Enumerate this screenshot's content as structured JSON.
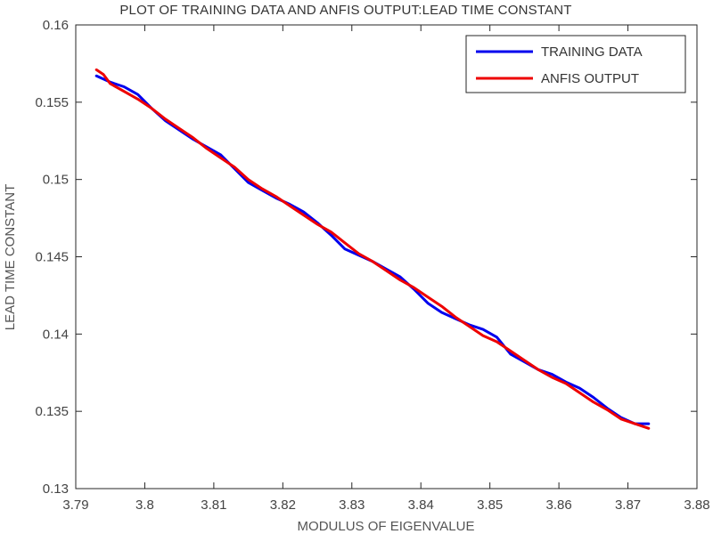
{
  "chart_data": {
    "type": "line",
    "title": "PLOT OF TRAINING DATA AND ANFIS OUTPUT:LEAD TIME CONSTANT",
    "xlabel": "MODULUS OF EIGENVALUE",
    "ylabel": "LEAD TIME CONSTANT",
    "xlim": [
      3.79,
      3.88
    ],
    "ylim": [
      0.13,
      0.16
    ],
    "xticks": [
      3.79,
      3.8,
      3.81,
      3.82,
      3.83,
      3.84,
      3.85,
      3.86,
      3.87,
      3.88
    ],
    "xtick_labels": [
      "3.79",
      "3.8",
      "3.81",
      "3.82",
      "3.83",
      "3.84",
      "3.85",
      "3.86",
      "3.87",
      "3.88"
    ],
    "yticks": [
      0.13,
      0.135,
      0.14,
      0.145,
      0.15,
      0.155,
      0.16
    ],
    "ytick_labels": [
      "0.13",
      "0.135",
      "0.14",
      "0.145",
      "0.15",
      "0.155",
      "0.16"
    ],
    "grid": false,
    "legend_position": "top-right",
    "series": [
      {
        "name": "TRAINING DATA",
        "color": "#0000ee",
        "x": [
          3.793,
          3.795,
          3.797,
          3.799,
          3.801,
          3.803,
          3.805,
          3.807,
          3.809,
          3.811,
          3.813,
          3.815,
          3.817,
          3.819,
          3.821,
          3.823,
          3.825,
          3.827,
          3.829,
          3.831,
          3.833,
          3.835,
          3.837,
          3.839,
          3.841,
          3.843,
          3.845,
          3.847,
          3.849,
          3.851,
          3.853,
          3.855,
          3.857,
          3.859,
          3.861,
          3.863,
          3.865,
          3.867,
          3.869,
          3.871,
          3.873
        ],
        "y": [
          0.1567,
          0.1563,
          0.156,
          0.1555,
          0.1546,
          0.1538,
          0.1532,
          0.1526,
          0.1521,
          0.1516,
          0.1507,
          0.1498,
          0.1493,
          0.1488,
          0.1484,
          0.1479,
          0.1472,
          0.1464,
          0.1455,
          0.1451,
          0.1447,
          0.1442,
          0.1437,
          0.1429,
          0.142,
          0.1414,
          0.141,
          0.1406,
          0.1403,
          0.1398,
          0.1387,
          0.1382,
          0.1377,
          0.1374,
          0.1369,
          0.1365,
          0.1359,
          0.1352,
          0.1346,
          0.1342,
          0.1342
        ]
      },
      {
        "name": "ANFIS OUTPUT",
        "color": "#ee0000",
        "x": [
          3.793,
          3.794,
          3.795,
          3.797,
          3.799,
          3.801,
          3.803,
          3.805,
          3.807,
          3.809,
          3.811,
          3.813,
          3.815,
          3.817,
          3.819,
          3.821,
          3.823,
          3.825,
          3.827,
          3.829,
          3.831,
          3.833,
          3.835,
          3.837,
          3.839,
          3.841,
          3.843,
          3.845,
          3.847,
          3.849,
          3.851,
          3.853,
          3.855,
          3.857,
          3.859,
          3.861,
          3.863,
          3.865,
          3.867,
          3.869,
          3.871,
          3.873
        ],
        "y": [
          0.1571,
          0.1568,
          0.1562,
          0.1557,
          0.1552,
          0.1546,
          0.1539,
          0.1533,
          0.1527,
          0.152,
          0.1514,
          0.1508,
          0.15,
          0.1494,
          0.1489,
          0.1483,
          0.1477,
          0.1471,
          0.1466,
          0.1459,
          0.1452,
          0.1447,
          0.1441,
          0.1435,
          0.143,
          0.1424,
          0.1418,
          0.1411,
          0.1405,
          0.1399,
          0.1395,
          0.1389,
          0.1383,
          0.1377,
          0.1372,
          0.1368,
          0.1362,
          0.1356,
          0.1351,
          0.1345,
          0.1342,
          0.1339
        ]
      }
    ]
  }
}
